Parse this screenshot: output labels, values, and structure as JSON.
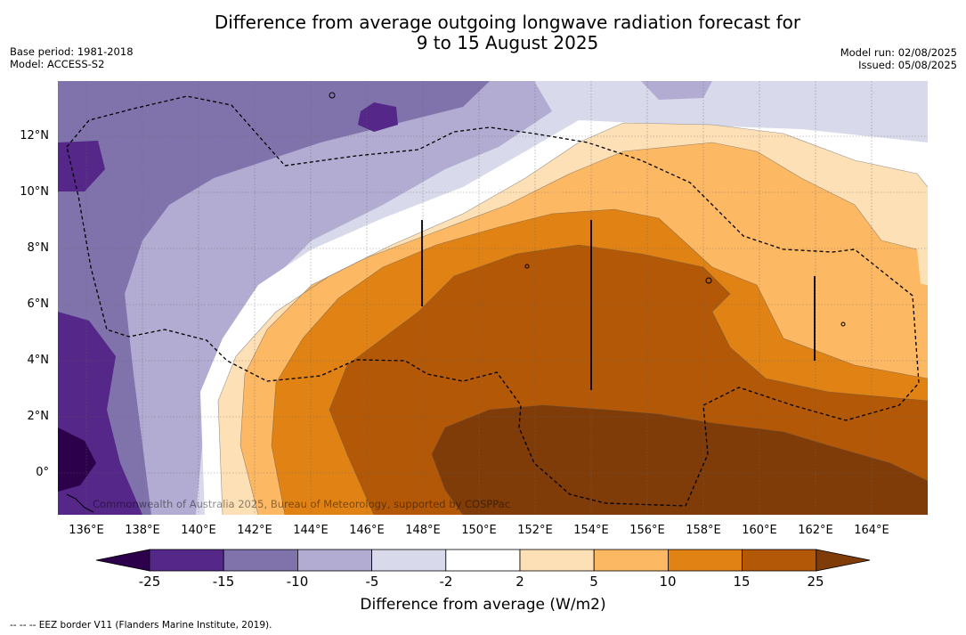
{
  "title_line1": "Difference from average outgoing longwave radiation forecast for",
  "title_line2": "9 to 15 August 2025",
  "base_period": "Base period: 1981-2018",
  "model": "Model: ACCESS-S2",
  "model_run": "Model run: 02/08/2025",
  "issued": "Issued: 05/08/2025",
  "copyright": "Commonwealth of Australia 2025, Bureau of Meteorology, supported by COSPPac",
  "footnote": "--  --  -- EEZ border V11 (Flanders Marine Institute, 2019).",
  "map": {
    "lat_labels": [
      "12°N",
      "10°N",
      "8°N",
      "6°N",
      "4°N",
      "2°N",
      "0°"
    ],
    "lon_labels": [
      "136°E",
      "138°E",
      "140°E",
      "142°E",
      "144°E",
      "146°E",
      "148°E",
      "150°E",
      "152°E",
      "154°E",
      "156°E",
      "158°E",
      "160°E",
      "162°E",
      "164°E"
    ]
  },
  "colorbar": {
    "title": "Difference from average (W/m2)",
    "ticks": [
      "-25",
      "-15",
      "-10",
      "-5",
      "-2",
      "2",
      "5",
      "10",
      "15",
      "25"
    ],
    "colors": [
      "#2d004b",
      "#542788",
      "#8073ac",
      "#b2abd2",
      "#d8daeb",
      "#ffffff",
      "#fee0b6",
      "#fdb863",
      "#e08214",
      "#b35806",
      "#7f3b08"
    ]
  }
}
